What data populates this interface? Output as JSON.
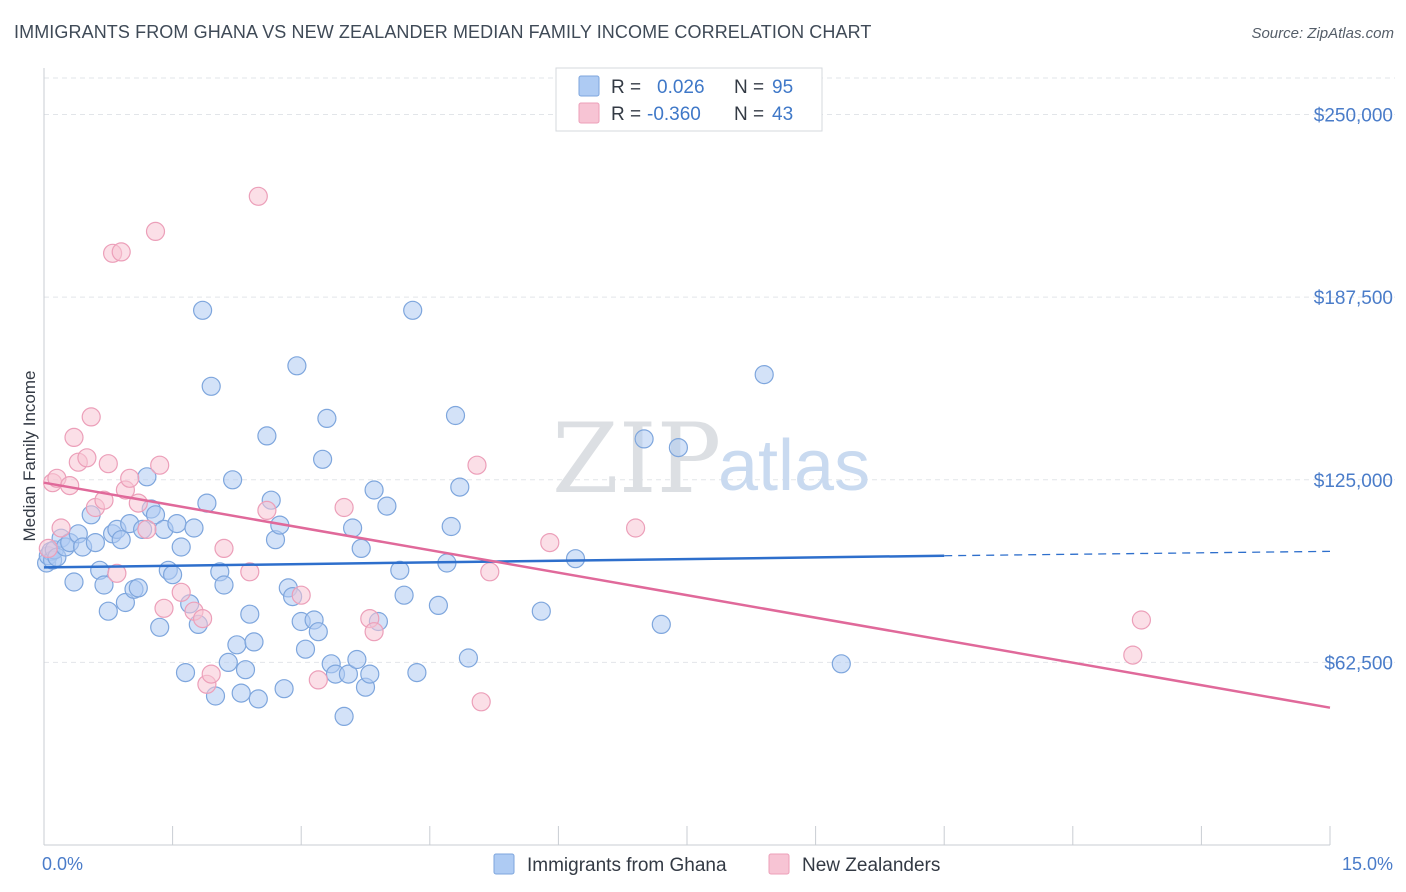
{
  "header": {
    "title": "IMMIGRANTS FROM GHANA VS NEW ZEALANDER MEDIAN FAMILY INCOME CORRELATION CHART",
    "source": "Source: ZipAtlas.com"
  },
  "watermark": {
    "zip": "ZIP",
    "atlas": "atlas"
  },
  "colors": {
    "ghana_fill": "#aecbf3",
    "ghana_stroke": "#7ea6dd",
    "ghana_line": "#2e6fcc",
    "nz_fill": "#f7c4d4",
    "nz_stroke": "#ec9fb9",
    "nz_line": "#e0699a",
    "axis_text": "#4a7cc9",
    "grid": "#e2e5e9"
  },
  "stats_box": {
    "rows": [
      {
        "r_label": "R =",
        "r_value": "0.026",
        "n_label": "N =",
        "n_value": "95"
      },
      {
        "r_label": "R =",
        "r_value": "-0.360",
        "n_label": "N =",
        "n_value": "43"
      }
    ]
  },
  "chart_data": {
    "type": "scatter",
    "xlabel": "",
    "ylabel": "Median Family Income",
    "xlim": [
      0,
      15
    ],
    "ylim": [
      0,
      262500
    ],
    "x_tick_labels": [
      "0.0%",
      "15.0%"
    ],
    "y_ticks": [
      62500,
      125000,
      187500,
      250000
    ],
    "y_tick_labels": [
      "$62,500",
      "$125,000",
      "$187,500",
      "$250,000"
    ],
    "legend": [
      "Immigrants from Ghana",
      "New Zealanders"
    ],
    "series": [
      {
        "name": "Immigrants from Ghana",
        "trend": {
          "x0": 0,
          "y0": 95000,
          "x1": 10.5,
          "y1": 99000,
          "dash_to_x": 15,
          "dash_to_y": 100500
        },
        "points": [
          [
            0.03,
            96500
          ],
          [
            0.05,
            99000
          ],
          [
            0.08,
            100500
          ],
          [
            0.1,
            97500
          ],
          [
            0.12,
            101000
          ],
          [
            0.15,
            98500
          ],
          [
            0.2,
            105000
          ],
          [
            0.25,
            102000
          ],
          [
            0.3,
            103500
          ],
          [
            0.35,
            90000
          ],
          [
            0.4,
            106500
          ],
          [
            0.45,
            102000
          ],
          [
            0.55,
            113000
          ],
          [
            0.6,
            103500
          ],
          [
            0.65,
            94000
          ],
          [
            0.7,
            89000
          ],
          [
            0.75,
            80000
          ],
          [
            0.8,
            106500
          ],
          [
            0.85,
            108000
          ],
          [
            0.9,
            104500
          ],
          [
            0.95,
            83000
          ],
          [
            1.0,
            110000
          ],
          [
            1.05,
            87500
          ],
          [
            1.1,
            88000
          ],
          [
            1.15,
            108000
          ],
          [
            1.2,
            126000
          ],
          [
            1.25,
            115000
          ],
          [
            1.3,
            113000
          ],
          [
            1.35,
            74500
          ],
          [
            1.4,
            108000
          ],
          [
            1.45,
            94000
          ],
          [
            1.5,
            92500
          ],
          [
            1.55,
            110000
          ],
          [
            1.6,
            102000
          ],
          [
            1.65,
            59000
          ],
          [
            1.7,
            82500
          ],
          [
            1.75,
            108500
          ],
          [
            1.8,
            75500
          ],
          [
            1.85,
            183000
          ],
          [
            1.9,
            117000
          ],
          [
            1.95,
            157000
          ],
          [
            2.0,
            51000
          ],
          [
            2.05,
            93500
          ],
          [
            2.1,
            89000
          ],
          [
            2.15,
            62500
          ],
          [
            2.2,
            125000
          ],
          [
            2.25,
            68500
          ],
          [
            2.3,
            52000
          ],
          [
            2.35,
            60000
          ],
          [
            2.4,
            79000
          ],
          [
            2.45,
            69500
          ],
          [
            2.5,
            50000
          ],
          [
            2.6,
            140000
          ],
          [
            2.65,
            118000
          ],
          [
            2.7,
            104500
          ],
          [
            2.75,
            109500
          ],
          [
            2.8,
            53500
          ],
          [
            2.85,
            88000
          ],
          [
            2.9,
            85000
          ],
          [
            2.95,
            164000
          ],
          [
            3.0,
            76500
          ],
          [
            3.05,
            67000
          ],
          [
            3.15,
            77000
          ],
          [
            3.2,
            73000
          ],
          [
            3.25,
            132000
          ],
          [
            3.3,
            146000
          ],
          [
            3.35,
            62000
          ],
          [
            3.4,
            58500
          ],
          [
            3.5,
            44000
          ],
          [
            3.55,
            58500
          ],
          [
            3.6,
            108500
          ],
          [
            3.65,
            63500
          ],
          [
            3.7,
            101500
          ],
          [
            3.75,
            54000
          ],
          [
            3.8,
            58500
          ],
          [
            3.85,
            121500
          ],
          [
            3.9,
            76500
          ],
          [
            4.0,
            116000
          ],
          [
            4.15,
            94000
          ],
          [
            4.2,
            85500
          ],
          [
            4.3,
            183000
          ],
          [
            4.35,
            59000
          ],
          [
            4.6,
            82000
          ],
          [
            4.7,
            96500
          ],
          [
            4.75,
            109000
          ],
          [
            4.8,
            147000
          ],
          [
            4.85,
            122500
          ],
          [
            4.95,
            64000
          ],
          [
            5.8,
            80000
          ],
          [
            6.2,
            98000
          ],
          [
            7.0,
            139000
          ],
          [
            7.2,
            75500
          ],
          [
            7.4,
            136000
          ],
          [
            8.4,
            161000
          ],
          [
            9.3,
            62000
          ]
        ]
      },
      {
        "name": "New Zealanders",
        "trend": {
          "x0": 0,
          "y0": 124000,
          "x1": 15,
          "y1": 47000
        },
        "points": [
          [
            0.05,
            101500
          ],
          [
            0.1,
            124000
          ],
          [
            0.15,
            125500
          ],
          [
            0.2,
            108500
          ],
          [
            0.3,
            123000
          ],
          [
            0.35,
            139500
          ],
          [
            0.4,
            131000
          ],
          [
            0.5,
            132500
          ],
          [
            0.55,
            146500
          ],
          [
            0.6,
            115500
          ],
          [
            0.7,
            118000
          ],
          [
            0.75,
            130500
          ],
          [
            0.8,
            202500
          ],
          [
            0.85,
            93000
          ],
          [
            0.9,
            203000
          ],
          [
            0.95,
            121500
          ],
          [
            1.0,
            125500
          ],
          [
            1.1,
            117000
          ],
          [
            1.2,
            108000
          ],
          [
            1.3,
            210000
          ],
          [
            1.35,
            130000
          ],
          [
            1.4,
            81000
          ],
          [
            1.6,
            86500
          ],
          [
            1.75,
            80000
          ],
          [
            1.85,
            77500
          ],
          [
            1.9,
            55000
          ],
          [
            1.95,
            58500
          ],
          [
            2.1,
            101500
          ],
          [
            2.4,
            93500
          ],
          [
            2.5,
            222000
          ],
          [
            2.6,
            114500
          ],
          [
            3.0,
            85500
          ],
          [
            3.2,
            56500
          ],
          [
            3.5,
            115500
          ],
          [
            3.8,
            77500
          ],
          [
            3.85,
            73000
          ],
          [
            5.05,
            130000
          ],
          [
            5.1,
            49000
          ],
          [
            5.2,
            93500
          ],
          [
            5.9,
            103500
          ],
          [
            6.9,
            108500
          ],
          [
            12.8,
            77000
          ],
          [
            12.7,
            65000
          ]
        ]
      }
    ]
  }
}
